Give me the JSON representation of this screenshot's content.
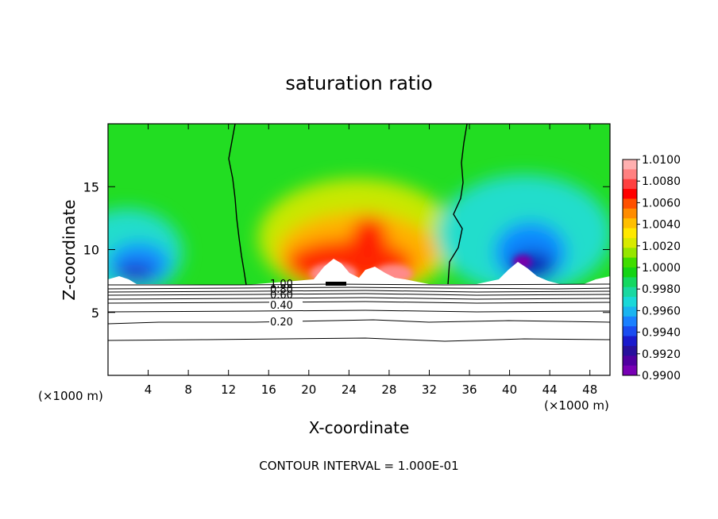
{
  "chart_data": {
    "type": "heatmap",
    "title": "saturation ratio",
    "xlabel": "X-coordinate",
    "ylabel": "Z-coordinate",
    "x_unit": "(×1000 m)",
    "y_unit": "(×1000 m)",
    "xlim": [
      0,
      50
    ],
    "ylim": [
      0,
      20
    ],
    "x_ticks": [
      "4",
      "8",
      "12",
      "16",
      "20",
      "24",
      "28",
      "32",
      "36",
      "40",
      "44",
      "48"
    ],
    "y_ticks": [
      "5",
      "10",
      "15"
    ],
    "colorbar": {
      "min": 0.99,
      "max": 1.01,
      "labels": [
        "1.0100",
        "1.0080",
        "1.0060",
        "1.0040",
        "1.0020",
        "1.0000",
        "0.9980",
        "0.9960",
        "0.9940",
        "0.9920",
        "0.9900"
      ]
    },
    "contour_labels": [
      "1.00",
      "0.80",
      "0.60",
      "0.40",
      "0.20"
    ],
    "footer": "CONTOUR INTERVAL = 1.000E-01"
  }
}
